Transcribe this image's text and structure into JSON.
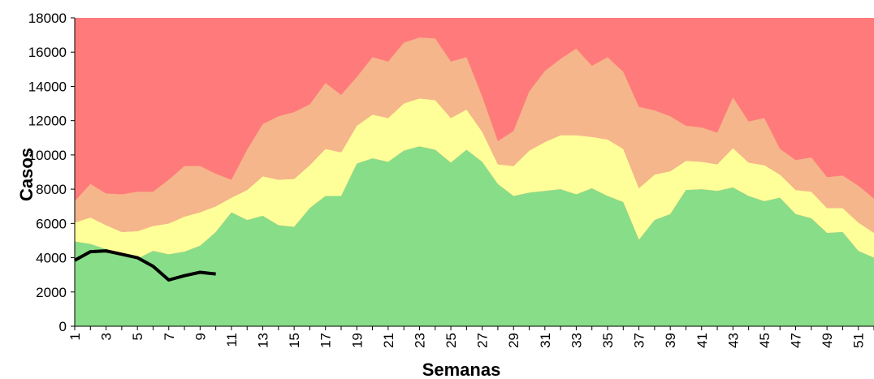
{
  "chart_data": {
    "type": "area",
    "stacked": true,
    "x_label": "Semanas",
    "y_label": "Casos",
    "categories": [
      "1",
      null,
      "3",
      null,
      "5",
      null,
      "7",
      null,
      "9",
      null,
      "11",
      null,
      "13",
      null,
      "15",
      null,
      "17",
      null,
      "19",
      null,
      "21",
      null,
      "23",
      null,
      "25",
      null,
      "27",
      null,
      "29",
      null,
      "31",
      null,
      "33",
      null,
      "35",
      null,
      "37",
      null,
      "39",
      null,
      "41",
      null,
      "43",
      null,
      "45",
      null,
      "47",
      null,
      "49",
      null,
      "51",
      null
    ],
    "plot_background": "#ff7b7b",
    "series": [
      {
        "color": "#88dd88",
        "values": [
          4950,
          4800,
          4500,
          4100,
          3950,
          4400,
          4200,
          4350,
          4700,
          5500,
          6650,
          6200,
          6450,
          5900,
          5800,
          6900,
          7600,
          7600,
          9500,
          9800,
          9600,
          10250,
          10500,
          10300,
          9550,
          10300,
          9600,
          8300,
          7600,
          7800,
          7900,
          8000,
          7700,
          8050,
          7600,
          7250,
          5050,
          6200,
          6550,
          7950,
          8000,
          7900,
          8100,
          7600,
          7300,
          7500,
          6550,
          6300,
          5450,
          5500,
          4400,
          4000
        ]
      },
      {
        "color": "#ffff99",
        "values": [
          1100,
          1550,
          1400,
          1400,
          1600,
          1450,
          1800,
          2050,
          1950,
          1500,
          850,
          1750,
          2300,
          2650,
          2800,
          2500,
          2750,
          2550,
          2200,
          2550,
          2550,
          2750,
          2800,
          2900,
          2600,
          2350,
          1750,
          1150,
          1750,
          2450,
          2850,
          3150,
          3450,
          3000,
          3300,
          3100,
          3000,
          2650,
          2500,
          1700,
          1600,
          1550,
          2300,
          1950,
          2100,
          1350,
          1400,
          1550,
          1450,
          1400,
          1650,
          1450
        ]
      },
      {
        "color": "#f5b68b",
        "values": [
          1250,
          1950,
          1850,
          2200,
          2300,
          2000,
          2550,
          2950,
          2700,
          1900,
          1050,
          2350,
          3050,
          3700,
          3900,
          3550,
          3850,
          3350,
          2850,
          3350,
          3300,
          3550,
          3550,
          3600,
          3300,
          3050,
          2050,
          1350,
          2050,
          3450,
          4150,
          4450,
          5050,
          4150,
          4800,
          4500,
          4750,
          3750,
          3200,
          2050,
          2000,
          1850,
          2950,
          2400,
          2750,
          1500,
          1750,
          2000,
          1800,
          1900,
          2150,
          2000
        ]
      }
    ],
    "line": {
      "color": "#000000",
      "values": [
        3850,
        4350,
        4400,
        4200,
        4000,
        3500,
        2700,
        2950,
        3150,
        3050,
        null,
        null,
        null,
        null,
        null,
        null,
        null,
        null,
        null,
        null,
        null,
        null,
        null,
        null,
        null,
        null,
        null,
        null,
        null,
        null,
        null,
        null,
        null,
        null,
        null,
        null,
        null,
        null,
        null,
        null,
        null,
        null,
        null,
        null,
        null,
        null,
        null,
        null,
        null,
        null,
        null,
        null
      ]
    },
    "ylim": [
      0,
      18000
    ],
    "yticks": [
      0,
      2000,
      4000,
      6000,
      8000,
      10000,
      12000,
      14000,
      16000,
      18000
    ]
  }
}
